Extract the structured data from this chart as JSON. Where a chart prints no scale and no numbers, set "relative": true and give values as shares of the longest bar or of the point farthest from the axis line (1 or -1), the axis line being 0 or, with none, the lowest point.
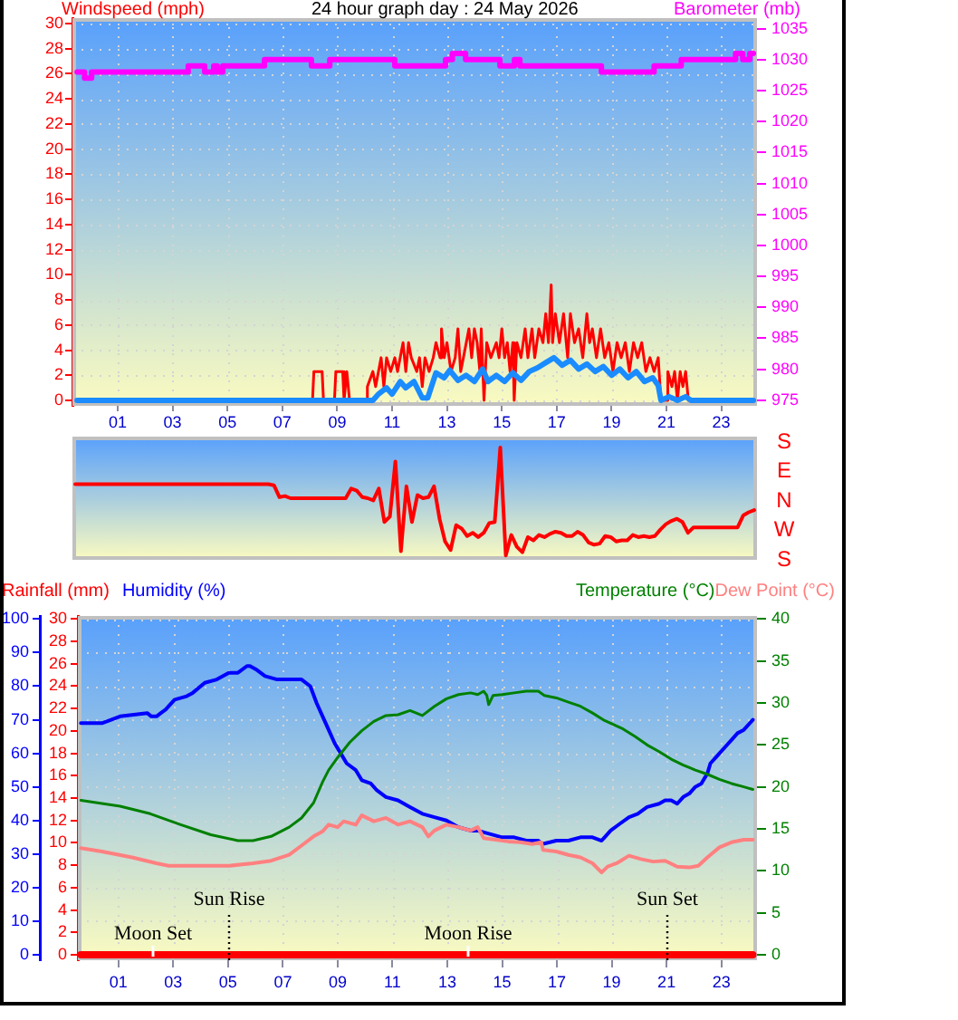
{
  "chart_data": [
    {
      "type": "line",
      "title": "24 hour graph day : 24 May 2026",
      "ylabel": "Windspeed (mph)",
      "y2label": "Barometer (mb)",
      "xlim": [
        -0.65,
        24.3
      ],
      "xticks": [
        {
          "value": 1,
          "label": "01"
        },
        {
          "value": 3,
          "label": "03"
        },
        {
          "value": 5,
          "label": "05"
        },
        {
          "value": 7,
          "label": "07"
        },
        {
          "value": 9,
          "label": "09"
        },
        11,
        13,
        15,
        17,
        19,
        21,
        23
      ],
      "ylim": [
        -0.43,
        30.43
      ],
      "yticks": [
        0,
        2,
        4,
        6,
        8,
        10,
        12,
        14,
        16,
        18,
        20,
        22,
        24,
        26,
        28,
        30
      ],
      "y2lim": [
        974.1,
        1036.7
      ],
      "y2ticks": [
        975,
        980,
        985,
        990,
        995,
        1000,
        1005,
        1010,
        1015,
        1020,
        1025,
        1030,
        1035
      ],
      "grid": true,
      "series": [
        {
          "color": "#ff0000",
          "x": [
            -0.48,
            8.1,
            8.15,
            8.45,
            8.5,
            8.9,
            8.95,
            9.2,
            9.25,
            9.35,
            9.45,
            10.05,
            10.1,
            10.3,
            10.4,
            10.6,
            10.7,
            10.8,
            10.95,
            11.1,
            11.2,
            11.4,
            11.5,
            11.6,
            11.7,
            11.9,
            12.0,
            12.1,
            12.2,
            12.35,
            12.5,
            12.6,
            12.75,
            12.8,
            12.9,
            13.0,
            13.15,
            13.3,
            13.4,
            13.5,
            13.6,
            13.8,
            13.9,
            14.0,
            14.1,
            14.2,
            14.25,
            14.35,
            14.45,
            14.6,
            14.8,
            14.9,
            15.0,
            15.1,
            15.2,
            15.3,
            15.4,
            15.45,
            15.55,
            15.7,
            15.85,
            15.95,
            16.1,
            16.2,
            16.35,
            16.5,
            16.6,
            16.7,
            16.8,
            16.85,
            16.95,
            17.1,
            17.25,
            17.4,
            17.5,
            17.65,
            17.8,
            17.95,
            18.1,
            18.2,
            18.3,
            18.45,
            18.6,
            18.75,
            18.9,
            19.05,
            19.2,
            19.35,
            19.5,
            19.65,
            19.8,
            19.95,
            20.1,
            20.25,
            20.4,
            20.55,
            20.7,
            20.8,
            21.0,
            21.05,
            21.2,
            21.3,
            21.4,
            21.5,
            21.6,
            21.7,
            21.8,
            24.17
          ],
          "values": [
            0,
            0,
            2.3,
            2.3,
            0,
            0,
            2.3,
            2.3,
            0,
            2.3,
            0,
            0,
            1.1,
            2.3,
            1.1,
            3.4,
            1.1,
            3.4,
            2.3,
            3.4,
            2.3,
            4.6,
            2.3,
            4.6,
            3.4,
            2.3,
            3.4,
            1.1,
            3.4,
            2.3,
            3.4,
            4.6,
            3.4,
            5.7,
            3.4,
            4.6,
            2.3,
            3.4,
            5.7,
            2.3,
            3.4,
            5.7,
            3.4,
            5.7,
            4.6,
            2.3,
            5.7,
            0,
            4.6,
            3.4,
            4.6,
            3.4,
            5.7,
            3.4,
            4.6,
            2.3,
            4.6,
            0,
            4.6,
            3.4,
            5.7,
            3.4,
            5.7,
            3.4,
            5.7,
            4.6,
            6.9,
            4.6,
            9.2,
            4.6,
            6.9,
            4.6,
            6.9,
            3.4,
            6.9,
            4.6,
            5.7,
            3.4,
            6.9,
            4.6,
            5.7,
            3.4,
            5.7,
            3.4,
            4.6,
            2.3,
            4.6,
            3.4,
            4.6,
            2.3,
            4.6,
            3.4,
            4.6,
            2.3,
            3.4,
            2.3,
            3.4,
            0,
            0,
            2.3,
            1.1,
            2.3,
            0,
            2.3,
            1.1,
            2.3,
            0,
            0
          ]
        },
        {
          "color": "#1a8cff",
          "x": [
            -0.48,
            10.3,
            10.5,
            10.8,
            11.0,
            11.3,
            11.5,
            11.8,
            12.1,
            12.3,
            12.6,
            12.9,
            13.1,
            13.4,
            13.7,
            14.0,
            14.3,
            14.5,
            14.8,
            15.1,
            15.4,
            15.7,
            16.0,
            16.3,
            16.6,
            16.9,
            17.2,
            17.5,
            17.8,
            18.1,
            18.4,
            18.7,
            19.0,
            19.3,
            19.6,
            19.9,
            20.2,
            20.5,
            20.7,
            20.8,
            21.1,
            21.4,
            21.7,
            21.9,
            24.17
          ],
          "values": [
            0,
            0,
            0.5,
            1.0,
            0.5,
            1.5,
            1.0,
            1.5,
            0.2,
            0.2,
            2.2,
            1.8,
            2.4,
            1.6,
            2.0,
            1.5,
            2.5,
            1.5,
            2.0,
            1.5,
            2.2,
            1.6,
            2.3,
            2.6,
            3.0,
            3.4,
            2.8,
            3.2,
            2.5,
            2.9,
            2.3,
            2.7,
            2.0,
            2.5,
            1.8,
            2.3,
            1.5,
            1.8,
            1.2,
            0,
            0.3,
            0,
            0.3,
            0,
            0
          ]
        },
        {
          "type": "step",
          "axis": "y2",
          "color": "#ff00ff",
          "x": [
            -0.48,
            -0.21,
            0.05,
            3.57,
            4.17,
            4.5,
            4.63,
            4.83,
            6.35,
            8.06,
            8.73,
            11.1,
            12.95,
            13.2,
            13.68,
            14.93,
            15.46,
            15.66,
            18.63,
            20.55,
            21.54,
            23.52,
            23.78,
            24.04,
            24.17
          ],
          "values": [
            1028,
            1027,
            1028,
            1029,
            1028,
            1029,
            1028,
            1029,
            1030,
            1029,
            1030,
            1029,
            1030,
            1031,
            1030,
            1029,
            1030,
            1029,
            1028,
            1029,
            1030,
            1031,
            1030,
            1031,
            1031
          ]
        }
      ]
    },
    {
      "type": "line",
      "relative": true,
      "annotations": [
        "S",
        "E",
        "N",
        "W",
        "S"
      ],
      "categories": [
        null,
        null,
        null,
        null,
        null,
        null,
        null,
        null,
        null,
        null,
        null,
        null,
        null,
        null,
        null,
        null,
        null,
        null,
        null,
        null,
        null,
        null,
        null,
        null,
        null,
        null,
        null,
        null,
        null,
        null,
        null,
        null,
        null,
        null,
        null,
        null,
        null,
        null,
        null,
        null,
        null,
        null,
        null,
        null,
        null,
        null,
        null,
        null,
        null,
        null,
        null,
        null,
        null,
        null,
        null,
        null,
        null,
        null,
        null,
        null,
        null,
        null,
        null,
        null,
        null,
        null,
        null,
        null,
        null,
        null,
        null,
        null,
        null,
        null,
        null,
        null,
        null,
        null,
        null,
        null,
        null,
        null,
        null,
        null,
        null,
        null,
        null,
        null,
        null,
        null,
        null,
        null,
        null,
        null,
        null,
        null,
        null,
        null,
        null,
        null,
        null,
        null,
        null,
        null,
        null,
        null,
        null,
        null,
        null,
        null,
        null,
        null,
        null,
        null,
        null,
        null,
        null,
        null,
        null,
        null,
        null,
        null,
        null,
        null
      ],
      "series": [
        {
          "color": "#ff0000",
          "values": [
            0.66,
            0.66,
            0.66,
            0.66,
            0.66,
            0.66,
            0.66,
            0.66,
            0.66,
            0.66,
            0.66,
            0.66,
            0.66,
            0.66,
            0.66,
            0.66,
            0.66,
            0.66,
            0.66,
            0.66,
            0.66,
            0.66,
            0.66,
            0.66,
            0.66,
            0.66,
            0.66,
            0.66,
            0.66,
            0.66,
            0.66,
            0.66,
            0.66,
            0.66,
            0.66,
            0.66,
            0.65,
            0.54,
            0.55,
            0.53,
            0.53,
            0.53,
            0.53,
            0.53,
            0.53,
            0.53,
            0.53,
            0.53,
            0.53,
            0.53,
            0.62,
            0.6,
            0.54,
            0.53,
            0.51,
            0.62,
            0.31,
            0.36,
            0.87,
            0.04,
            0.64,
            0.31,
            0.56,
            0.53,
            0.54,
            0.64,
            0.34,
            0.13,
            0.05,
            0.28,
            0.25,
            0.18,
            0.21,
            0.17,
            0.21,
            0.3,
            0.31,
            1,
            0,
            0.19,
            0.08,
            0.03,
            0.17,
            0.14,
            0.19,
            0.17,
            0.2,
            0.22,
            0.21,
            0.18,
            0.18,
            0.22,
            0.19,
            0.12,
            0.1,
            0.11,
            0.18,
            0.17,
            0.13,
            0.14,
            0.14,
            0.19,
            0.17,
            0.18,
            0.17,
            0.18,
            0.24,
            0.29,
            0.32,
            0.34,
            0.31,
            0.21,
            0.26,
            0.26,
            0.26,
            0.26,
            0.26,
            0.26,
            0.26,
            0.26,
            0.26,
            0.37,
            0.4,
            0.42
          ]
        }
      ]
    },
    {
      "type": "line",
      "xlim": [
        -0.48,
        24.3
      ],
      "xticks": [
        {
          "value": 1,
          "label": "01"
        },
        {
          "value": 3,
          "label": "03"
        },
        {
          "value": 5,
          "label": "05"
        },
        {
          "value": 7,
          "label": "07"
        },
        {
          "value": 9,
          "label": "09"
        },
        11,
        13,
        15,
        17,
        19,
        21,
        23
      ],
      "ylim": [
        -1.6,
        100.9
      ],
      "yticks": [
        0,
        10,
        20,
        30,
        40,
        50,
        60,
        70,
        80,
        90,
        100
      ],
      "y2lim": [
        -0.65,
        40.36
      ],
      "y2ticks": [
        0,
        5,
        10,
        15,
        20,
        25,
        30,
        35,
        40
      ],
      "y3lim": [
        -0.49,
        30.27
      ],
      "y3ticks": [
        0,
        2,
        4,
        6,
        8,
        10,
        12,
        14,
        16,
        18,
        20,
        22,
        24,
        26,
        28,
        30
      ],
      "grid": true,
      "series": [
        {
          "name": "Rainfall (mm)",
          "axis": "y3",
          "color": "#ff0000",
          "x": [
            -0.37,
            24.15
          ],
          "values": [
            0,
            0
          ]
        },
        {
          "name": "Humidity (%)",
          "color": "#0000ff",
          "x": [
            -0.37,
            0.4,
            0.73,
            1.06,
            2.05,
            2.2,
            2.39,
            2.55,
            2.72,
            3.05,
            3.49,
            3.71,
            4.15,
            4.59,
            5.03,
            5.36,
            5.69,
            5.8,
            6.02,
            6.35,
            6.79,
            7.68,
            8.0,
            8.23,
            8.45,
            8.67,
            8.89,
            9.11,
            9.33,
            9.66,
            9.88,
            10.21,
            10.43,
            10.76,
            11.2,
            11.64,
            12.09,
            12.53,
            12.97,
            13.41,
            13.85,
            14.11,
            14.55,
            15.0,
            15.44,
            15.88,
            16.32,
            16.47,
            16.98,
            17.42,
            17.86,
            18.3,
            18.63,
            18.74,
            18.96,
            19.29,
            19.63,
            19.95,
            20.29,
            20.73,
            20.95,
            21.17,
            21.39,
            21.61,
            21.83,
            22.05,
            22.27,
            22.49,
            22.6,
            22.82,
            22.93,
            23.15,
            23.37,
            23.59,
            23.82,
            24.04,
            24.15
          ],
          "values": [
            69,
            69,
            70,
            71,
            72,
            71,
            71,
            72,
            73,
            76,
            77,
            78,
            81,
            82,
            84,
            84,
            86,
            86,
            85,
            83,
            82,
            82,
            80,
            75,
            71,
            67,
            63,
            60,
            57,
            55,
            52,
            51,
            49,
            47,
            46,
            44,
            42,
            41,
            40,
            38,
            37,
            37,
            36,
            35,
            35,
            34,
            34,
            33,
            34,
            34,
            35,
            35,
            34,
            35,
            37,
            39,
            41,
            42,
            44,
            45,
            46,
            46,
            45,
            47,
            48,
            50,
            51,
            54,
            57,
            59,
            60,
            62,
            64,
            66,
            67,
            69,
            70
          ]
        },
        {
          "name": "Temperature (°C)",
          "axis": "y2",
          "color": "#008000",
          "x": [
            -0.37,
            1.06,
            2.16,
            3.27,
            4.37,
            5.36,
            5.91,
            6.57,
            7.23,
            7.68,
            8.12,
            8.45,
            8.67,
            9.0,
            9.44,
            9.88,
            10.32,
            10.76,
            11.2,
            11.64,
            12.09,
            12.53,
            12.97,
            13.41,
            13.85,
            14.11,
            14.33,
            14.44,
            14.51,
            14.67,
            15.0,
            15.44,
            15.88,
            16.32,
            16.54,
            16.98,
            17.42,
            17.86,
            18.3,
            18.74,
            19.41,
            19.85,
            20.29,
            20.73,
            21.17,
            21.61,
            22.05,
            22.49,
            22.93,
            23.37,
            23.82,
            24.15
          ],
          "values": [
            18.4,
            17.7,
            16.8,
            15.5,
            14.3,
            13.6,
            13.6,
            14.1,
            15.2,
            16.3,
            18.1,
            20.6,
            22.0,
            23.5,
            25.3,
            26.7,
            27.8,
            28.5,
            28.6,
            29.1,
            28.5,
            29.6,
            30.5,
            31.0,
            31.2,
            31.0,
            31.4,
            30.9,
            29.8,
            30.9,
            31.0,
            31.2,
            31.4,
            31.4,
            30.9,
            30.6,
            30.1,
            29.6,
            28.8,
            27.9,
            26.9,
            26.0,
            25.0,
            24.2,
            23.3,
            22.6,
            22.0,
            21.5,
            20.9,
            20.4,
            20.0,
            19.7
          ]
        },
        {
          "name": "Dew Point (°C)",
          "axis": "y2",
          "color": "#ff8080",
          "x": [
            -0.37,
            0.4,
            1.5,
            2.39,
            2.83,
            4.15,
            5.03,
            5.91,
            6.57,
            7.23,
            7.68,
            8.12,
            8.45,
            8.67,
            9.0,
            9.22,
            9.66,
            9.88,
            10.32,
            10.76,
            11.2,
            11.64,
            12.09,
            12.31,
            12.53,
            12.97,
            13.41,
            13.85,
            14.11,
            14.33,
            14.77,
            15.22,
            15.66,
            16.1,
            16.43,
            16.49,
            16.98,
            17.42,
            17.86,
            18.3,
            18.63,
            18.85,
            19.18,
            19.63,
            20.07,
            20.51,
            20.95,
            21.39,
            21.83,
            22.16,
            22.49,
            22.93,
            23.37,
            23.82,
            24.15
          ],
          "values": [
            12.7,
            12.3,
            11.6,
            10.9,
            10.6,
            10.6,
            10.6,
            10.9,
            11.2,
            11.9,
            13.0,
            14.1,
            14.7,
            15.5,
            15.2,
            15.9,
            15.5,
            16.6,
            15.9,
            16.3,
            15.5,
            15.9,
            15.2,
            14.1,
            14.8,
            15.5,
            15.2,
            14.8,
            15.2,
            13.9,
            13.7,
            13.5,
            13.4,
            13.2,
            13.4,
            12.5,
            12.3,
            11.9,
            11.6,
            10.9,
            9.8,
            10.5,
            10.9,
            11.8,
            11.4,
            11.1,
            11.2,
            10.5,
            10.4,
            10.6,
            11.6,
            12.8,
            13.4,
            13.7,
            13.7
          ]
        }
      ],
      "ref_lines": [
        {
          "axis": "x",
          "value": 5,
          "label": "Sun Rise",
          "color": "#000000",
          "line_style": "dotted"
        },
        {
          "axis": "x",
          "value": 21,
          "label": "Sun Set",
          "color": "#000000",
          "line_style": "dotted"
        }
      ],
      "annotations": [
        {
          "text": "Moon Set",
          "x": 2.2,
          "y": 0
        },
        {
          "text": "Moon Rise",
          "x": 13.7,
          "y": 0
        }
      ]
    }
  ]
}
